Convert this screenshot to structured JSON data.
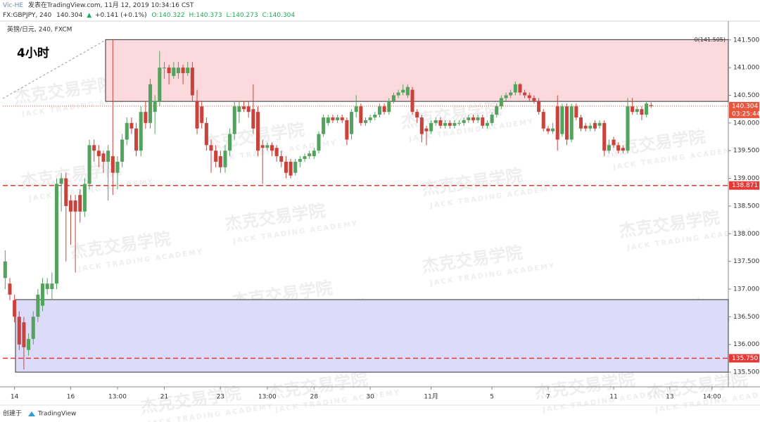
{
  "header": {
    "author": "Vic-HE",
    "published": "发表在TradingView.com, 11月 12, 2019 10:34:16 CST",
    "symbol": "FX:GBPJPY, 240",
    "last": "140.304",
    "arrow": "▲",
    "change": "+0.141 (+0.1%)",
    "open": "O:140.322",
    "high": "H:140.373",
    "low": "L:140.273",
    "close": "C:140.304"
  },
  "chart_data": {
    "type": "candlestick",
    "instrument": "英镑/日元, 240, FXCM",
    "annotation": "4小时",
    "watermark": "杰克交易学院",
    "watermark_en": "JACK TRADING ACADEMY",
    "categories": [
      null,
      null,
      "14",
      null,
      null,
      null,
      null,
      null,
      null,
      null,
      null,
      null,
      null,
      null,
      "16",
      null,
      null,
      null,
      null,
      null,
      null,
      null,
      null,
      null,
      "13:00",
      null,
      null,
      null,
      null,
      null,
      null,
      null,
      null,
      null,
      "21",
      null,
      null,
      null,
      null,
      null,
      null,
      null,
      null,
      null,
      null,
      null,
      "23",
      null,
      null,
      null,
      null,
      null,
      null,
      null,
      null,
      null,
      "13:00",
      null,
      null,
      null,
      null,
      null,
      null,
      null,
      null,
      null,
      "28",
      null,
      null,
      null,
      null,
      null,
      null,
      null,
      null,
      null,
      null,
      null,
      "30",
      null,
      null,
      null,
      null,
      null,
      null,
      null,
      null,
      null,
      null,
      null,
      null,
      "11月",
      null,
      null,
      null,
      null,
      null,
      null,
      null,
      null,
      null,
      null,
      null,
      null,
      "5",
      null,
      null,
      null,
      null,
      null,
      null,
      null,
      null,
      null,
      null,
      null,
      "7",
      null,
      null,
      null,
      null,
      null,
      null,
      null,
      null,
      null,
      null,
      null,
      null,
      null,
      "11",
      null,
      null,
      null,
      null,
      null,
      null,
      null,
      null,
      null,
      null,
      null,
      "13",
      null,
      null,
      null,
      null,
      null,
      null,
      null,
      null,
      "14:00",
      null,
      null,
      null
    ],
    "ohlc": [
      [
        137.2,
        137.7,
        137.0,
        137.5
      ],
      [
        137.1,
        137.2,
        136.8,
        136.9
      ],
      [
        136.8,
        136.9,
        136.4,
        136.5
      ],
      [
        136.5,
        136.6,
        135.9,
        136.0
      ],
      [
        136.4,
        136.5,
        135.55,
        135.95
      ],
      [
        135.9,
        136.2,
        135.8,
        136.1
      ],
      [
        136.1,
        136.6,
        136.0,
        136.5
      ],
      [
        136.5,
        137.0,
        136.4,
        136.9
      ],
      [
        136.7,
        137.2,
        136.6,
        137.1
      ],
      [
        137.0,
        137.2,
        136.9,
        137.1
      ],
      [
        137.0,
        137.3,
        136.8,
        137.1
      ],
      [
        137.1,
        139.0,
        137.0,
        138.9
      ],
      [
        138.9,
        139.1,
        138.4,
        139.0
      ],
      [
        139.0,
        139.1,
        137.5,
        138.5
      ],
      [
        138.6,
        138.7,
        137.8,
        138.4
      ],
      [
        138.6,
        138.7,
        137.3,
        138.4
      ],
      [
        138.7,
        138.8,
        138.2,
        138.4
      ],
      [
        138.4,
        139.0,
        138.3,
        138.9
      ],
      [
        138.9,
        139.7,
        138.8,
        139.6
      ],
      [
        139.6,
        139.7,
        139.3,
        139.5
      ],
      [
        139.5,
        139.6,
        139.2,
        139.4
      ],
      [
        139.45,
        139.5,
        139.1,
        139.3
      ],
      [
        139.3,
        139.6,
        138.6,
        139.5
      ],
      [
        139.4,
        141.5,
        138.7,
        139.1
      ],
      [
        139.1,
        139.4,
        138.8,
        139.3
      ],
      [
        139.3,
        139.8,
        139.2,
        139.7
      ],
      [
        139.7,
        140.1,
        139.6,
        140.0
      ],
      [
        140.0,
        140.1,
        139.8,
        139.9
      ],
      [
        139.9,
        140.0,
        139.4,
        139.5
      ],
      [
        139.5,
        140.3,
        139.4,
        140.2
      ],
      [
        140.2,
        140.4,
        139.9,
        140.0
      ],
      [
        140.0,
        140.8,
        139.9,
        140.7
      ],
      [
        140.2,
        140.5,
        139.8,
        140.4
      ],
      [
        140.4,
        141.3,
        140.3,
        141.0
      ],
      [
        141.0,
        141.1,
        140.8,
        141.0
      ],
      [
        141.0,
        141.05,
        140.7,
        140.9
      ],
      [
        140.85,
        141.1,
        140.8,
        141.0
      ],
      [
        140.9,
        141.1,
        140.8,
        141.0
      ],
      [
        141.0,
        141.05,
        140.7,
        140.9
      ],
      [
        140.9,
        141.1,
        140.85,
        141.0
      ],
      [
        141.0,
        141.1,
        140.4,
        140.5
      ],
      [
        140.4,
        140.6,
        139.8,
        139.9
      ],
      [
        140.3,
        140.4,
        139.9,
        140.0
      ],
      [
        140.0,
        140.1,
        139.5,
        139.6
      ],
      [
        139.6,
        139.7,
        139.1,
        139.5
      ],
      [
        139.5,
        139.6,
        139.2,
        139.3
      ],
      [
        139.4,
        139.5,
        139.1,
        139.2
      ],
      [
        139.2,
        139.6,
        139.1,
        139.5
      ],
      [
        139.5,
        139.9,
        139.4,
        139.8
      ],
      [
        139.8,
        140.4,
        139.7,
        140.3
      ],
      [
        140.2,
        140.4,
        140.0,
        140.3
      ],
      [
        140.3,
        140.4,
        140.2,
        140.25
      ],
      [
        140.3,
        140.4,
        140.1,
        140.2
      ],
      [
        140.25,
        140.7,
        139.8,
        139.9
      ],
      [
        140.2,
        140.3,
        139.4,
        139.5
      ],
      [
        139.6,
        139.7,
        138.9,
        139.55
      ],
      [
        139.55,
        139.65,
        139.5,
        139.6
      ],
      [
        139.6,
        139.65,
        139.4,
        139.5
      ],
      [
        139.55,
        139.6,
        139.3,
        139.4
      ],
      [
        139.4,
        139.5,
        139.2,
        139.3
      ],
      [
        139.3,
        139.4,
        139.0,
        139.1
      ],
      [
        139.3,
        139.35,
        139.0,
        139.05
      ],
      [
        139.1,
        139.35,
        139.05,
        139.3
      ],
      [
        139.3,
        139.4,
        139.2,
        139.35
      ],
      [
        139.35,
        139.45,
        139.3,
        139.4
      ],
      [
        139.4,
        139.5,
        139.35,
        139.45
      ],
      [
        139.4,
        139.55,
        139.35,
        139.5
      ],
      [
        139.5,
        139.85,
        139.45,
        139.8
      ],
      [
        139.8,
        140.15,
        139.75,
        140.1
      ],
      [
        140.0,
        140.15,
        139.95,
        140.1
      ],
      [
        140.1,
        140.15,
        140.0,
        140.05
      ],
      [
        140.05,
        140.15,
        140.0,
        140.1
      ],
      [
        140.1,
        140.15,
        140.0,
        140.05
      ],
      [
        140.05,
        140.1,
        139.6,
        139.7
      ],
      [
        139.8,
        140.25,
        139.7,
        140.2
      ],
      [
        140.2,
        140.5,
        140.1,
        140.3
      ],
      [
        140.3,
        140.35,
        139.95,
        140.0
      ],
      [
        140.0,
        140.1,
        139.95,
        140.05
      ],
      [
        140.05,
        140.15,
        140.0,
        140.1
      ],
      [
        140.1,
        140.2,
        140.05,
        140.15
      ],
      [
        140.15,
        140.35,
        140.1,
        140.3
      ],
      [
        140.3,
        140.35,
        140.15,
        140.2
      ],
      [
        140.2,
        140.45,
        140.15,
        140.4
      ],
      [
        140.4,
        140.55,
        140.35,
        140.5
      ],
      [
        140.5,
        140.6,
        140.45,
        140.55
      ],
      [
        140.55,
        140.7,
        140.5,
        140.6
      ],
      [
        140.5,
        140.7,
        140.45,
        140.65
      ],
      [
        140.6,
        140.65,
        140.15,
        140.2
      ],
      [
        140.2,
        140.25,
        140.0,
        140.1
      ],
      [
        140.1,
        140.15,
        139.65,
        139.8
      ],
      [
        139.9,
        139.95,
        139.6,
        139.85
      ],
      [
        139.85,
        140.05,
        139.8,
        140.0
      ],
      [
        140.0,
        140.1,
        139.95,
        140.05
      ],
      [
        140.05,
        140.1,
        139.9,
        139.95
      ],
      [
        139.95,
        140.05,
        139.9,
        140.0
      ],
      [
        140.0,
        140.05,
        139.9,
        139.95
      ],
      [
        139.95,
        140.05,
        139.9,
        140.0
      ],
      [
        140.0,
        140.05,
        139.95,
        140.0
      ],
      [
        140.0,
        140.1,
        139.95,
        140.05
      ],
      [
        140.05,
        140.15,
        140.0,
        140.1
      ],
      [
        140.1,
        140.15,
        140.0,
        140.05
      ],
      [
        140.05,
        140.15,
        140.0,
        140.1
      ],
      [
        140.1,
        140.15,
        139.9,
        139.95
      ],
      [
        139.95,
        140.05,
        139.9,
        140.0
      ],
      [
        140.0,
        140.2,
        139.95,
        140.15
      ],
      [
        140.15,
        140.35,
        140.1,
        140.3
      ],
      [
        140.3,
        140.5,
        140.25,
        140.45
      ],
      [
        140.45,
        140.55,
        140.4,
        140.5
      ],
      [
        140.5,
        140.6,
        140.45,
        140.55
      ],
      [
        140.55,
        140.75,
        140.5,
        140.7
      ],
      [
        140.7,
        140.72,
        140.5,
        140.55
      ],
      [
        140.55,
        140.6,
        140.45,
        140.5
      ],
      [
        140.5,
        140.55,
        140.4,
        140.45
      ],
      [
        140.45,
        140.5,
        140.35,
        140.4
      ],
      [
        140.4,
        140.45,
        140.15,
        140.2
      ],
      [
        140.2,
        140.25,
        139.85,
        139.9
      ],
      [
        139.9,
        139.95,
        139.8,
        139.85
      ],
      [
        139.85,
        140.0,
        139.8,
        139.9
      ],
      [
        140.3,
        140.5,
        139.5,
        139.7
      ],
      [
        139.8,
        140.35,
        139.75,
        140.3
      ],
      [
        140.3,
        140.35,
        139.6,
        139.7
      ],
      [
        139.7,
        140.35,
        139.65,
        140.3
      ],
      [
        140.3,
        140.35,
        140.05,
        140.1
      ],
      [
        140.1,
        140.15,
        139.85,
        139.9
      ],
      [
        139.95,
        140.0,
        139.85,
        139.9
      ],
      [
        139.9,
        140.0,
        139.85,
        139.95
      ],
      [
        140.0,
        140.05,
        139.85,
        139.9
      ],
      [
        139.95,
        140.05,
        139.9,
        140.0
      ],
      [
        140.0,
        140.05,
        139.4,
        139.5
      ],
      [
        139.5,
        139.7,
        139.45,
        139.6
      ],
      [
        139.7,
        139.75,
        139.55,
        139.6
      ],
      [
        139.6,
        139.65,
        139.45,
        139.5
      ],
      [
        139.55,
        139.6,
        139.45,
        139.5
      ],
      [
        139.5,
        140.45,
        139.45,
        140.3
      ],
      [
        140.3,
        140.45,
        140.15,
        140.2
      ],
      [
        140.2,
        140.3,
        140.15,
        140.25
      ],
      [
        140.25,
        140.3,
        140.05,
        140.15
      ],
      [
        140.15,
        140.4,
        140.1,
        140.35
      ],
      [
        140.322,
        140.373,
        140.273,
        140.304
      ],
      null,
      null,
      null,
      null,
      null,
      null,
      null,
      null,
      null,
      null,
      null,
      null,
      null,
      null,
      null,
      null
    ],
    "up_color": "#53a35f",
    "down_color": "#c9433c",
    "ylim": [
      135.26,
      141.84
    ],
    "yticks": [
      {
        "value": 135.5,
        "label": "135.500"
      },
      {
        "value": 136.0,
        "label": "136.000"
      },
      {
        "value": 136.5,
        "label": "136.500"
      },
      {
        "value": 137.0,
        "label": "137.000"
      },
      {
        "value": 137.5,
        "label": "137.500"
      },
      {
        "value": 138.0,
        "label": "138.000"
      },
      {
        "value": 138.5,
        "label": "138.500"
      },
      {
        "value": 139.0,
        "label": "139.000"
      },
      {
        "value": 139.5,
        "label": "139.500"
      },
      {
        "value": 140.0,
        "label": "140.000"
      },
      {
        "value": 140.5,
        "label": "140.500"
      },
      {
        "value": 141.0,
        "label": "141.000"
      },
      {
        "value": 141.5,
        "label": "141.500"
      }
    ],
    "zones": [
      {
        "from": 140.39,
        "to": 141.505,
        "label": "0(141.505)",
        "color": "#fbd9dc"
      },
      {
        "from": 135.5,
        "to": 136.81,
        "color": "#dcdcfa"
      }
    ],
    "levels": [
      {
        "value": 138.871,
        "label": "138.871",
        "color": "#e53935"
      },
      {
        "value": 135.75,
        "label": "135.750",
        "color": "#e53935"
      }
    ],
    "last_price": {
      "value": 140.304,
      "label": "140.304",
      "countdown": "03:25:44",
      "color": "#e8553c"
    }
  },
  "footer": {
    "created": "创建于",
    "brand": "TradingView"
  }
}
